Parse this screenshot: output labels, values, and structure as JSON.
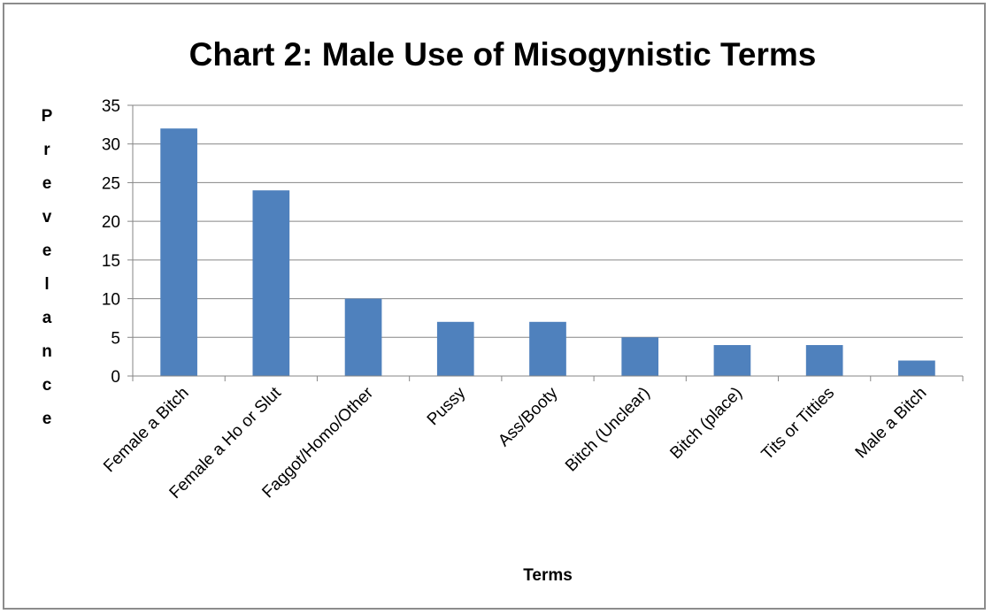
{
  "chart_data": {
    "type": "bar",
    "title": "Chart 2: Male Use of Misogynistic Terms",
    "xlabel": "Terms",
    "ylabel": "Prevelance",
    "categories": [
      "Female a Bitch",
      "Female a Ho or Slut",
      "Faggot/Homo/Other",
      "Pussy",
      "Ass/Booty",
      "Bitch (Unclear)",
      "Bitch (place)",
      "Tits or Titties",
      "Male a Bitch"
    ],
    "values": [
      32,
      24,
      10,
      7,
      7,
      5,
      4,
      4,
      2
    ],
    "ylim": [
      0,
      35
    ],
    "yticks": [
      "0",
      "5",
      "10",
      "15",
      "20",
      "25",
      "30",
      "35"
    ],
    "grid": true,
    "legend": "none",
    "bar_color": "#4f81bd",
    "grid_color": "#868686"
  }
}
